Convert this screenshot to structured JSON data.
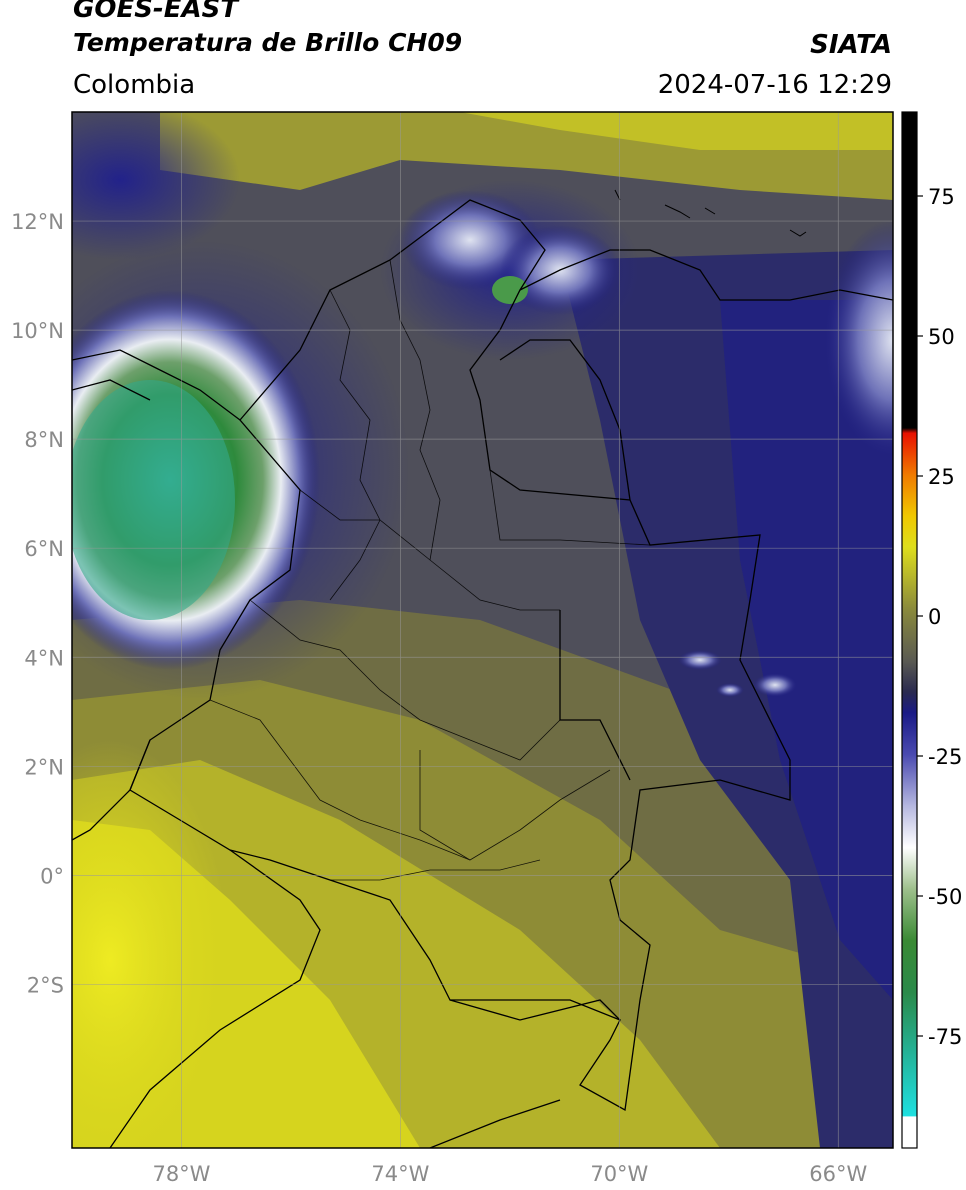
{
  "header": {
    "satellite": "GOES-EAST",
    "product": "Temperatura de Brillo CH09",
    "region": "Colombia",
    "agency": "SIATA",
    "datetime": "2024-07-16 12:29"
  },
  "map": {
    "lon_range": [
      -80,
      -65
    ],
    "lat_range": [
      -5,
      14
    ],
    "lat_ticks": [
      {
        "value": 12,
        "label": "12°N"
      },
      {
        "value": 10,
        "label": "10°N"
      },
      {
        "value": 8,
        "label": "8°N"
      },
      {
        "value": 6,
        "label": "6°N"
      },
      {
        "value": 4,
        "label": "4°N"
      },
      {
        "value": 2,
        "label": "2°N"
      },
      {
        "value": 0,
        "label": "0°"
      },
      {
        "value": -2,
        "label": "2°S"
      }
    ],
    "lon_ticks": [
      {
        "value": -78,
        "label": "78°W"
      },
      {
        "value": -74,
        "label": "74°W"
      },
      {
        "value": -70,
        "label": "70°W"
      },
      {
        "value": -66,
        "label": "66°W"
      }
    ],
    "colors": {
      "warm_yellow": "#e6e31a",
      "olive": "#7e7c3c",
      "grey_olive": "#4b4b58",
      "navy": "#1e1e80",
      "cold_white": "#e9edf2",
      "cold_green": "#2e8a3c",
      "very_cold_teal": "#33b49a"
    }
  },
  "colorbar": {
    "range": [
      -95,
      90
    ],
    "ticks": [
      {
        "value": 75,
        "label": "75"
      },
      {
        "value": 50,
        "label": "50"
      },
      {
        "value": 25,
        "label": "25"
      },
      {
        "value": 0,
        "label": "0"
      },
      {
        "value": -25,
        "label": "-25"
      },
      {
        "value": -50,
        "label": "-50"
      },
      {
        "value": -75,
        "label": "-75"
      }
    ]
  }
}
